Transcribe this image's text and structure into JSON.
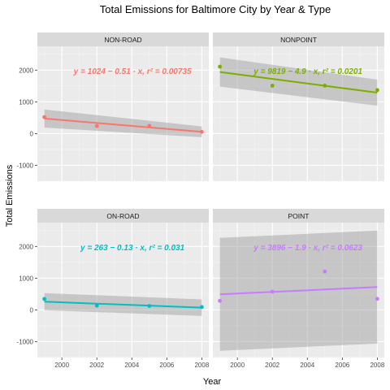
{
  "chart_data": {
    "type": "scatter",
    "title": "Total Emissions for Baltimore City by Year & Type",
    "xlabel": "Year",
    "ylabel": "Total Emissions",
    "xlim": [
      1998.6,
      2008.4
    ],
    "ylim": [
      -1500,
      2750
    ],
    "xticks": [
      2000,
      2002,
      2004,
      2006,
      2008
    ],
    "yticks": [
      -1000,
      0,
      1000,
      2000
    ],
    "grid": true,
    "legend": "none",
    "panels": [
      {
        "name": "NON-ROAD",
        "color": "#f8766d",
        "points": [
          {
            "x": 1999,
            "y": 520
          },
          {
            "x": 2002,
            "y": 240
          },
          {
            "x": 2005,
            "y": 245
          },
          {
            "x": 2008,
            "y": 55
          }
        ],
        "fit": {
          "y_start": 475,
          "y_end": 55
        },
        "band": {
          "lower": [
            190,
            -115
          ],
          "upper": [
            760,
            225
          ]
        },
        "equation": "y = 1024 − 0.51 · x,  r² = 0.00735"
      },
      {
        "name": "NONPOINT",
        "color": "#7cae00",
        "points": [
          {
            "x": 1999,
            "y": 2110
          },
          {
            "x": 2002,
            "y": 1510
          },
          {
            "x": 2005,
            "y": 1510
          },
          {
            "x": 2008,
            "y": 1370
          }
        ],
        "fit": {
          "y_start": 1940,
          "y_end": 1290
        },
        "band": {
          "lower": [
            1480,
            880
          ],
          "upper": [
            2400,
            1700
          ]
        },
        "equation": "y = 9819 − 4.9 · x,  r² = 0.0201"
      },
      {
        "name": "ON-ROAD",
        "color": "#00bfc4",
        "points": [
          {
            "x": 1999,
            "y": 345
          },
          {
            "x": 2002,
            "y": 135
          },
          {
            "x": 2005,
            "y": 125
          },
          {
            "x": 2008,
            "y": 90
          }
        ],
        "fit": {
          "y_start": 260,
          "y_end": 70
        },
        "band": {
          "lower": [
            -10,
            -190
          ],
          "upper": [
            530,
            330
          ]
        },
        "equation": "y = 263 − 0.13 · x,  r² = 0.031"
      },
      {
        "name": "POINT",
        "color": "#c77cff",
        "points": [
          {
            "x": 1999,
            "y": 285
          },
          {
            "x": 2002,
            "y": 575
          },
          {
            "x": 2005,
            "y": 1210
          },
          {
            "x": 2008,
            "y": 350
          }
        ],
        "fit": {
          "y_start": 490,
          "y_end": 720
        },
        "band": {
          "lower": [
            -1290,
            -1060
          ],
          "upper": [
            2270,
            2500
          ]
        },
        "equation": "y = 3896 − 1.9 · x,  r² = 0.0623"
      }
    ]
  }
}
